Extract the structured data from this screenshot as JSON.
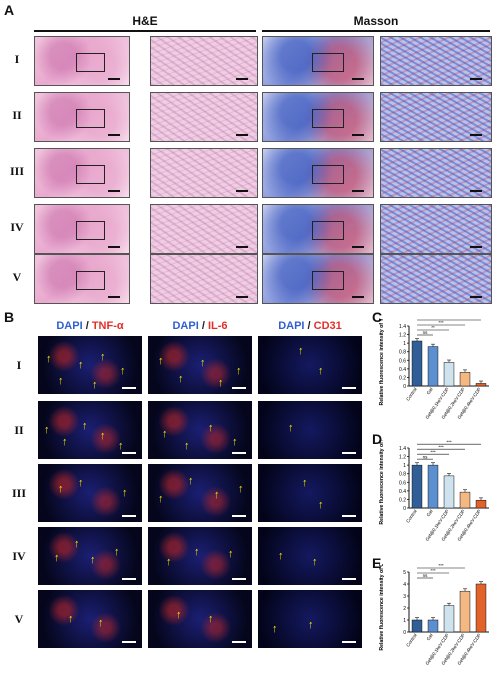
{
  "panels": {
    "A": "A",
    "B": "B",
    "C": "C",
    "D": "D",
    "E": "E"
  },
  "A": {
    "he_title": "H&E",
    "masson_title": "Masson",
    "rows": [
      "I",
      "II",
      "III",
      "IV",
      "V"
    ]
  },
  "B": {
    "stains": [
      {
        "dapi": "DAPI",
        "sep": "/",
        "marker": "TNF-α"
      },
      {
        "dapi": "DAPI",
        "sep": "/",
        "marker": "IL-6"
      },
      {
        "dapi": "DAPI",
        "sep": "/",
        "marker": "CD31"
      }
    ],
    "rows": [
      "I",
      "II",
      "III",
      "IV",
      "V"
    ]
  },
  "colors": {
    "bar1": "#2f5f96",
    "bar2": "#5b8fd0",
    "bar3": "#cfe3ef",
    "bar4": "#f4b883",
    "bar5": "#e2622b",
    "arrow": "#f2e600"
  },
  "chart_data": [
    {
      "type": "bar",
      "panel": "C",
      "ylabel": "Relative fluorescence intensity of TNF-α",
      "categories": [
        "Control",
        "Gel",
        "Gel@0.1keV-CDP",
        "Gel@0.2keV-CDP",
        "Gel@0.4keV-CDP"
      ],
      "values": [
        1.05,
        0.92,
        0.55,
        0.32,
        0.06
      ],
      "ylim": [
        0,
        1.4
      ],
      "yticks": [
        0,
        0.2,
        0.4,
        0.6,
        0.8,
        1.0,
        1.2,
        1.4
      ],
      "significance": [
        "ns",
        "**",
        "***",
        "***"
      ]
    },
    {
      "type": "bar",
      "panel": "D",
      "ylabel": "Relative fluorescence intensity of IL-6",
      "categories": [
        "Control",
        "Gel",
        "Gel@0.1keV-CDP",
        "Gel@0.2keV-CDP",
        "Gel@0.4keV-CDP"
      ],
      "values": [
        1.0,
        1.0,
        0.75,
        0.37,
        0.18
      ],
      "ylim": [
        0,
        1.4
      ],
      "yticks": [
        0,
        0.2,
        0.4,
        0.6,
        0.8,
        1.0,
        1.2,
        1.4
      ],
      "significance": [
        "ns",
        "***",
        "***",
        "***"
      ]
    },
    {
      "type": "bar",
      "panel": "E",
      "ylabel": "Relative fluorescence intensity of CD31",
      "categories": [
        "Control",
        "Gel",
        "Gel@0.1keV-CDP",
        "Gel@0.2keV-CDP",
        "Gel@0.4keV-CDP"
      ],
      "values": [
        1.0,
        1.0,
        2.2,
        3.4,
        4.0
      ],
      "ylim": [
        0,
        5
      ],
      "yticks": [
        0,
        1,
        2,
        3,
        4,
        5
      ],
      "significance": [
        "ns",
        "***",
        "***",
        "***"
      ]
    }
  ]
}
